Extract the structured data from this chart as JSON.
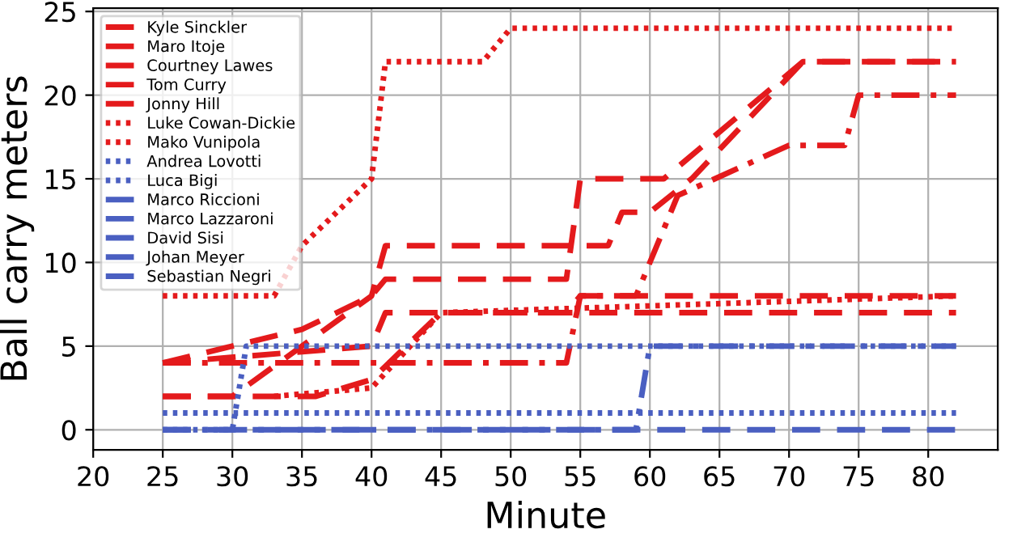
{
  "chart_data": {
    "type": "line",
    "xlabel": "Minute",
    "ylabel": "Ball carry meters",
    "xlim": [
      20,
      85
    ],
    "xticks": [
      20,
      25,
      30,
      35,
      40,
      45,
      50,
      55,
      60,
      65,
      70,
      75,
      80
    ],
    "ylim": [
      -1.2,
      25.2
    ],
    "yticks": [
      0,
      5,
      10,
      15,
      20,
      25
    ],
    "grid": true,
    "legend": "top left",
    "series": [
      {
        "name": "Kyle Sinckler",
        "color": "#e41a1c",
        "line_style": "dashed",
        "x": [
          25,
          30,
          35,
          40,
          41,
          57,
          58,
          60,
          63,
          71,
          82
        ],
        "values": [
          2,
          2,
          5,
          8,
          11,
          11,
          13,
          13,
          15,
          22,
          22
        ]
      },
      {
        "name": "Maro Itoje",
        "color": "#e41a1c",
        "line_style": "dashed",
        "x": [
          25,
          35,
          40,
          41,
          54,
          55,
          61,
          71,
          82
        ],
        "values": [
          4,
          6,
          8,
          9,
          9,
          15,
          15,
          22,
          22
        ]
      },
      {
        "name": "Courtney Lawes",
        "color": "#e41a1c",
        "line_style": "dashed",
        "x": [
          25,
          36,
          40,
          45,
          54,
          55,
          82
        ],
        "values": [
          2,
          2,
          3,
          7,
          7,
          8,
          8
        ]
      },
      {
        "name": "Tom Curry",
        "color": "#e41a1c",
        "line_style": "dashdot",
        "x": [
          25,
          54,
          55,
          59,
          62,
          70,
          74,
          75,
          82
        ],
        "values": [
          4,
          4,
          8,
          8,
          14,
          17,
          17,
          20,
          20
        ]
      },
      {
        "name": "Jonny Hill",
        "color": "#e41a1c",
        "line_style": "dashed",
        "x": [
          25,
          40,
          41,
          82
        ],
        "values": [
          4,
          5,
          7,
          7
        ]
      },
      {
        "name": "Luke Cowan-Dickie",
        "color": "#e41a1c",
        "line_style": "dotted",
        "x": [
          25,
          33,
          35,
          40,
          41,
          48,
          50,
          82
        ],
        "values": [
          8,
          8,
          11,
          15,
          22,
          22,
          24,
          24
        ]
      },
      {
        "name": "Mako Vunipola",
        "color": "#e41a1c",
        "line_style": "dotted",
        "x": [
          33,
          40,
          45,
          82
        ],
        "values": [
          2,
          2.5,
          7,
          8
        ]
      },
      {
        "name": "Andrea Lovotti",
        "color": "#4a5fc1",
        "line_style": "dotted",
        "x": [
          25,
          82
        ],
        "values": [
          1,
          1
        ]
      },
      {
        "name": "Luca Bigi",
        "color": "#4a5fc1",
        "line_style": "dotted",
        "x": [
          25,
          30,
          31,
          82
        ],
        "values": [
          0,
          0,
          5,
          5
        ]
      },
      {
        "name": "Marco Riccioni",
        "color": "#4a5fc1",
        "line_style": "dashed"
      },
      {
        "name": "Marco Lazzaroni",
        "color": "#4a5fc1",
        "line_style": "dashdot"
      },
      {
        "name": "David Sisi",
        "color": "#4a5fc1",
        "line_style": "dashed"
      },
      {
        "name": "Johan Meyer",
        "color": "#4a5fc1",
        "line_style": "dashdot",
        "x": [
          25,
          59,
          60,
          82
        ],
        "values": [
          0,
          0,
          5,
          5
        ]
      },
      {
        "name": "Sebastian Negri",
        "color": "#4a5fc1",
        "line_style": "dashed",
        "x": [
          25,
          82
        ],
        "values": [
          0,
          0
        ]
      }
    ]
  }
}
